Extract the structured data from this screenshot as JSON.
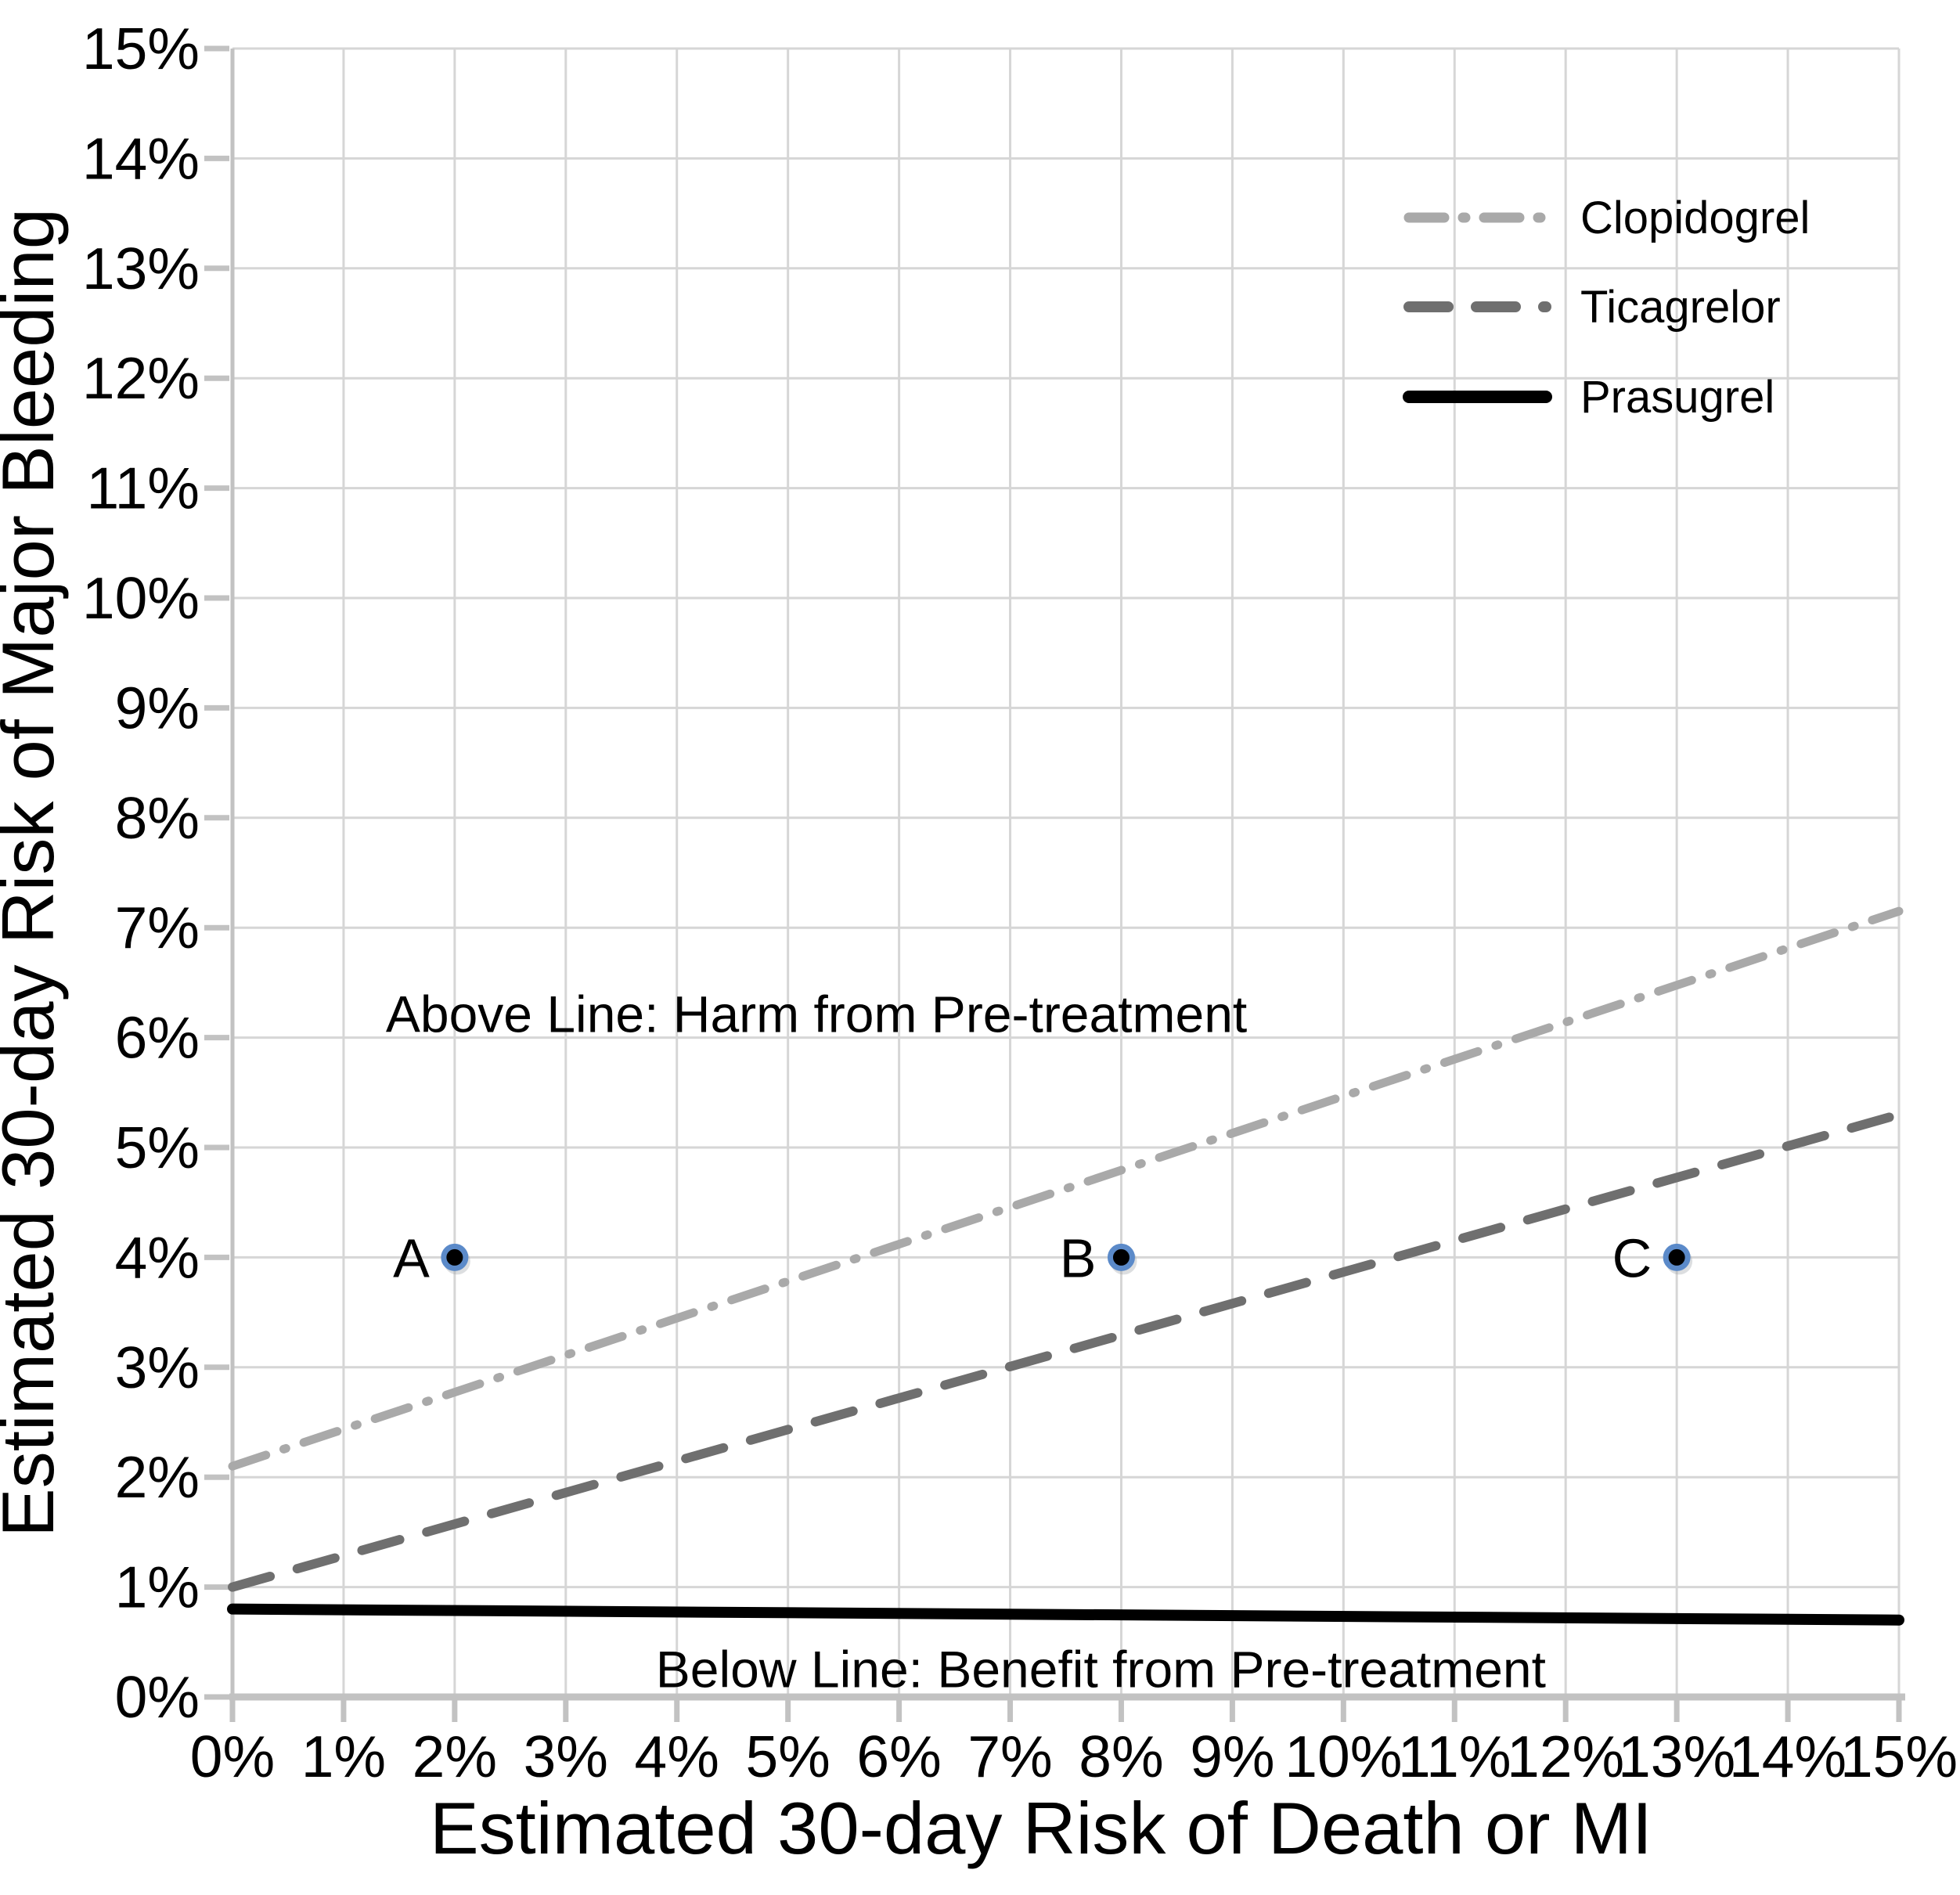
{
  "chart_data": {
    "type": "line",
    "title": "",
    "xlabel": "Estimated 30-day Risk of Death or MI",
    "ylabel": "Estimated 30-day Risk of Major Bleeding",
    "xlim": [
      0,
      15
    ],
    "ylim": [
      0,
      15
    ],
    "grid": true,
    "x_ticks": [
      0,
      1,
      2,
      3,
      4,
      5,
      6,
      7,
      8,
      9,
      10,
      11,
      12,
      13,
      14,
      15
    ],
    "x_tick_labels": [
      "0%",
      "1%",
      "2%",
      "3%",
      "4%",
      "5%",
      "6%",
      "7%",
      "8%",
      "9%",
      "10%",
      "11%",
      "12%",
      "13%",
      "14%",
      "15%"
    ],
    "y_ticks": [
      0,
      1,
      2,
      3,
      4,
      5,
      6,
      7,
      8,
      9,
      10,
      11,
      12,
      13,
      14,
      15
    ],
    "y_tick_labels": [
      "0%",
      "1%",
      "2%",
      "3%",
      "4%",
      "5%",
      "6%",
      "7%",
      "8%",
      "9%",
      "10%",
      "11%",
      "12%",
      "13%",
      "14%",
      "15%"
    ],
    "legend_position": "top-right",
    "series": [
      {
        "name": "Clopidogrel",
        "style": "dash-dot",
        "color": "#a9a9a9",
        "stroke_width": 11,
        "x": [
          0,
          15
        ],
        "y": [
          2.1,
          7.15
        ]
      },
      {
        "name": "Ticagrelor",
        "style": "dashed",
        "color": "#6f6f6f",
        "stroke_width": 12,
        "x": [
          0,
          15
        ],
        "y": [
          1.0,
          5.3
        ]
      },
      {
        "name": "Prasugrel",
        "style": "solid",
        "color": "#000000",
        "stroke_width": 14,
        "x": [
          0,
          15
        ],
        "y": [
          0.8,
          0.7
        ]
      }
    ],
    "points": [
      {
        "label": "A",
        "x": 2,
        "y": 4
      },
      {
        "label": "B",
        "x": 8,
        "y": 4
      },
      {
        "label": "C",
        "x": 13,
        "y": 4
      }
    ],
    "marker_fill": "#000000",
    "marker_ring": "#5b8ac9",
    "annotations": [
      {
        "text": "Above Line: Harm from Pre-treatment",
        "x": 1.38,
        "y": 6.05,
        "anchor": "start"
      },
      {
        "text": "Below Line: Benefit from Pre-treatment",
        "x": 3.81,
        "y": 0.09,
        "anchor": "start"
      }
    ]
  },
  "theme": {
    "background": "#ffffff",
    "gridline": "#d6d6d6",
    "axis_line": "#c2c2c2",
    "tick_mark": "#c2c2c2",
    "text": "#000000"
  }
}
